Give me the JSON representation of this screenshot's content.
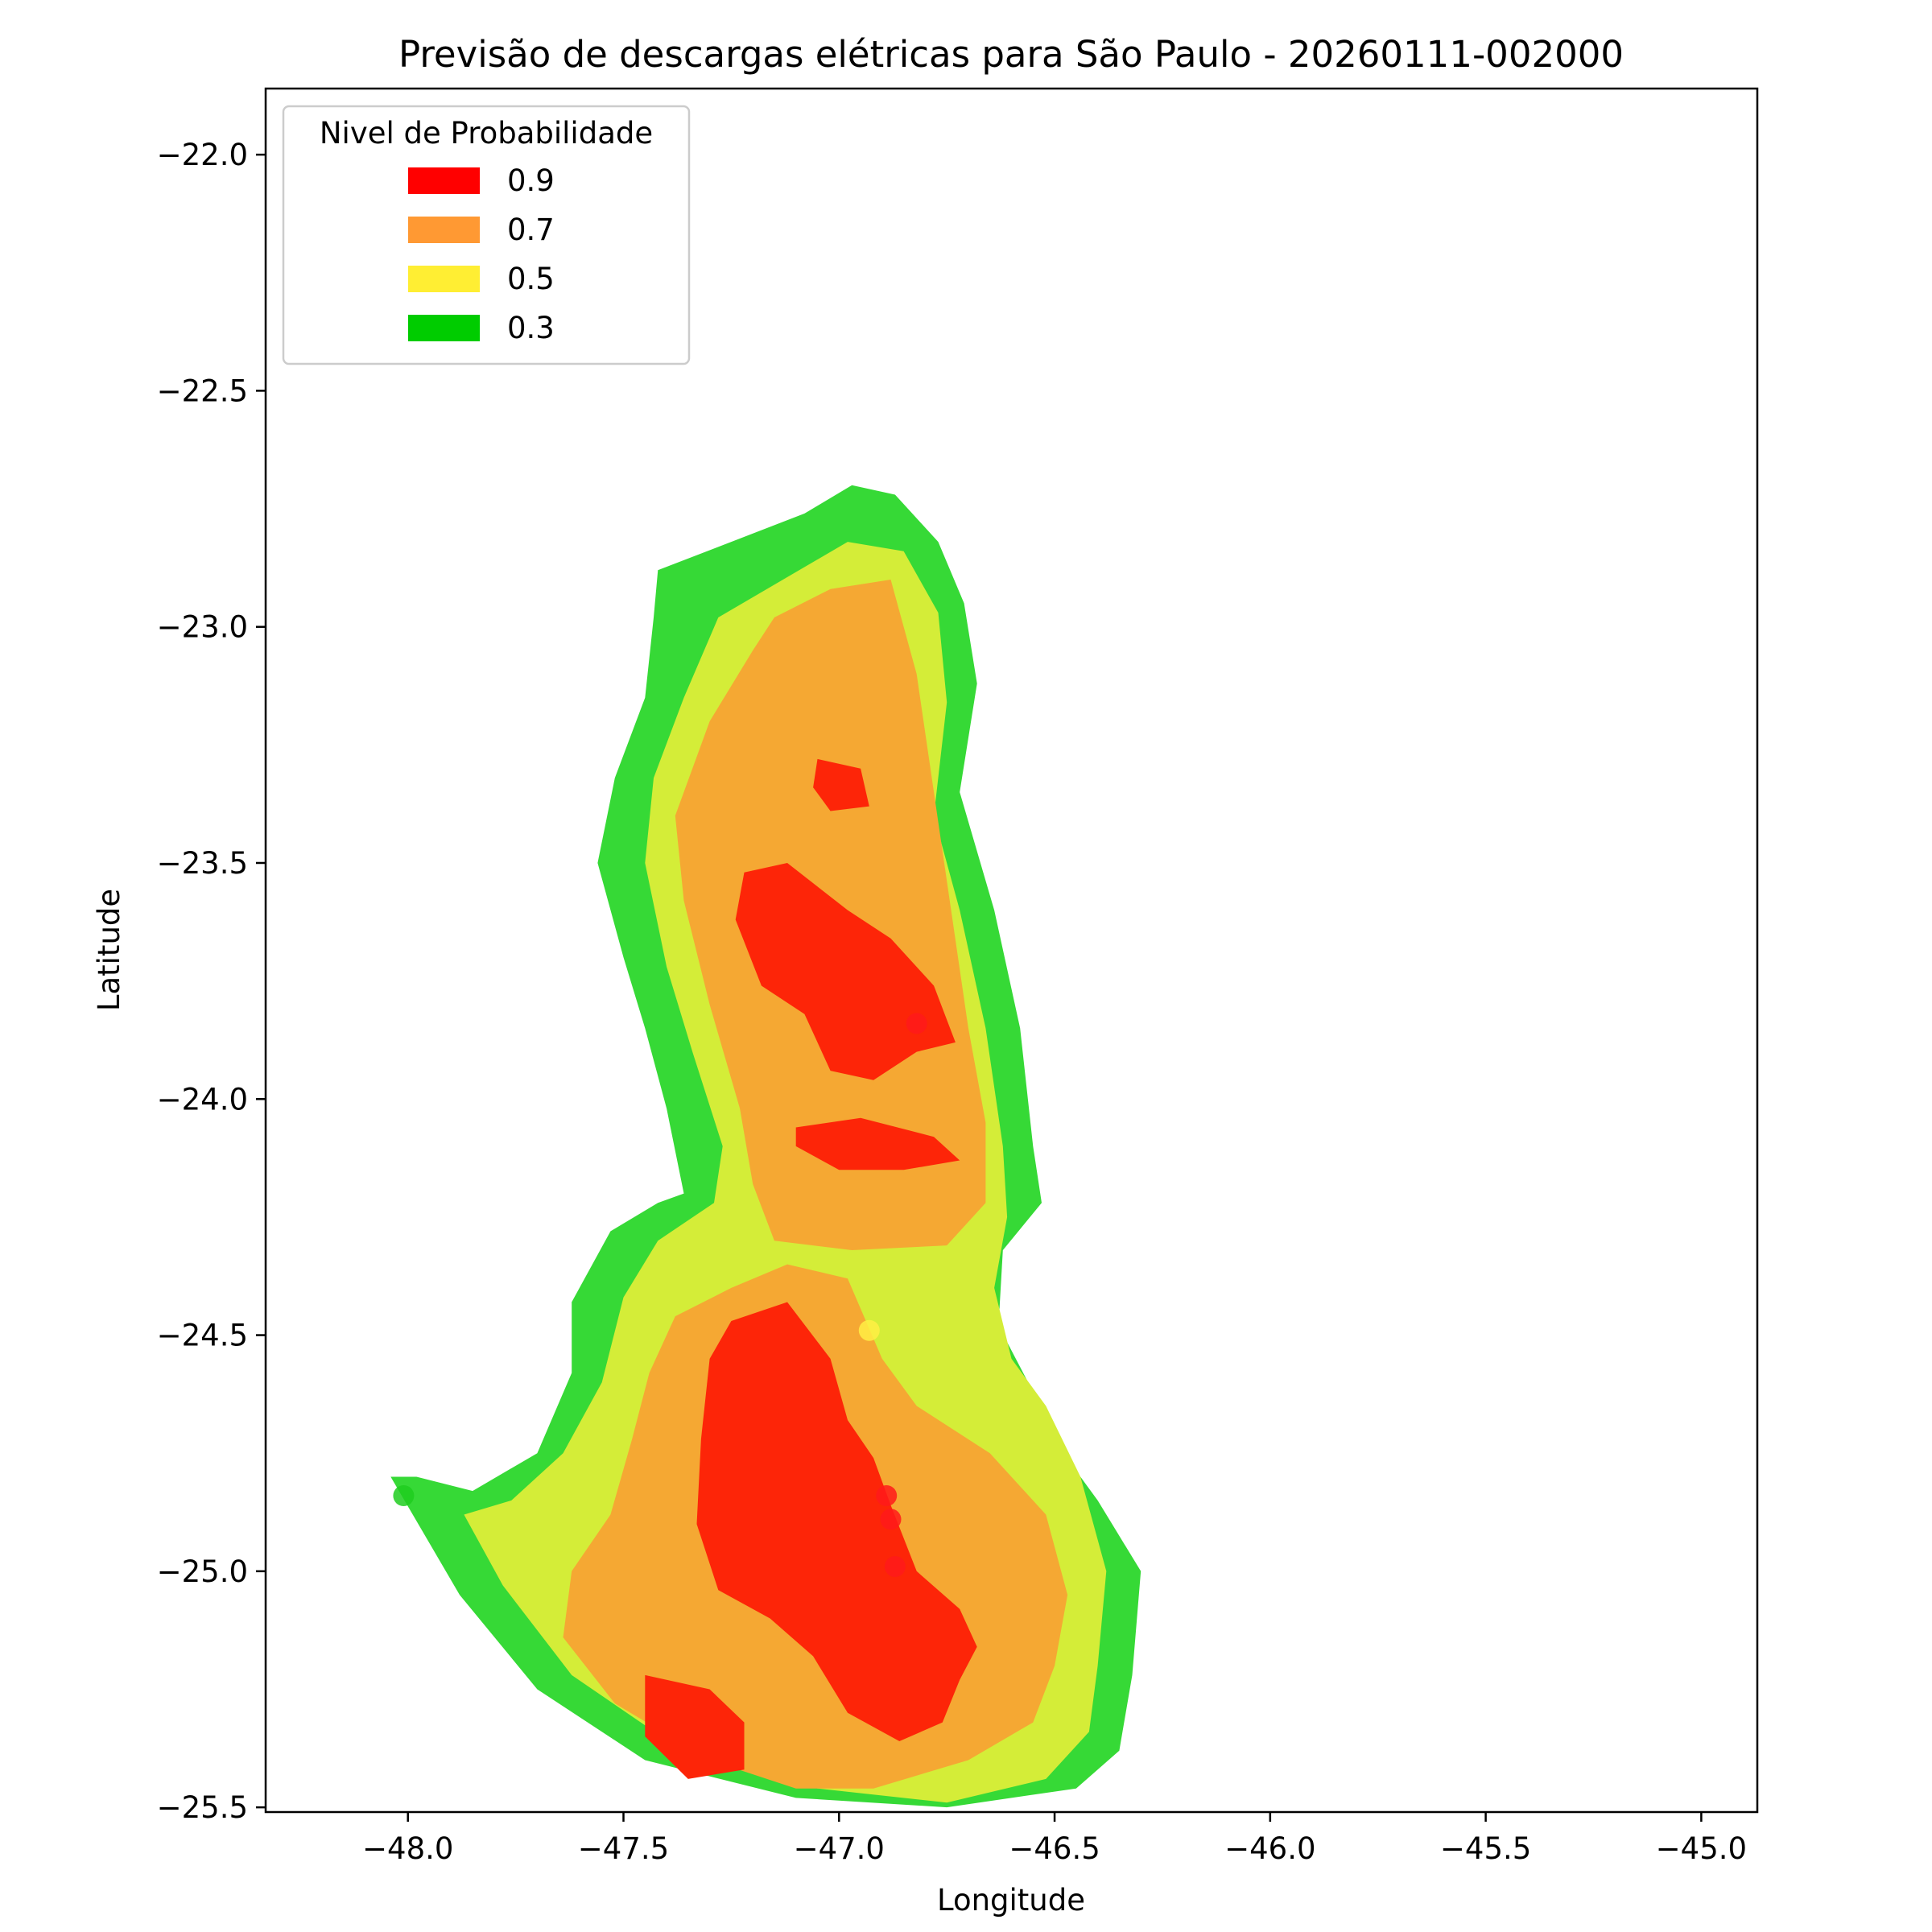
{
  "chart_data": {
    "type": "map",
    "title": "Previsão de descargas elétricas para São Paulo - 20260111-002000",
    "xlabel": "Longitude",
    "ylabel": "Latitude",
    "xlim": [
      -48.33,
      -44.87
    ],
    "ylim": [
      -25.51,
      -21.86
    ],
    "xticks": [
      -48.0,
      -47.5,
      -47.0,
      -46.5,
      -46.0,
      -45.5,
      -45.0
    ],
    "xtick_labels": [
      "−48.0",
      "−47.5",
      "−47.0",
      "−46.5",
      "−46.0",
      "−45.5",
      "−45.0"
    ],
    "yticks": [
      -22.0,
      -22.5,
      -23.0,
      -23.5,
      -24.0,
      -24.5,
      -25.0,
      -25.5
    ],
    "ytick_labels": [
      "−22.0",
      "−22.5",
      "−23.0",
      "−23.5",
      "−24.0",
      "−24.5",
      "−25.0",
      "−25.5"
    ],
    "grid": false,
    "legend": {
      "title": "Nivel de Probabilidade",
      "placement": "upper-left",
      "entries": [
        {
          "label": "0.9",
          "color": "#ff0000"
        },
        {
          "label": "0.7",
          "color": "#ff9933"
        },
        {
          "label": "0.5",
          "color": "#ffee33"
        },
        {
          "label": "0.3",
          "color": "#00cc00"
        }
      ]
    },
    "levels": [
      {
        "level": "0.3",
        "color": "#36d936",
        "polygons": [
          [
            [
              -47.42,
              -22.88
            ],
            [
              -47.25,
              -22.82
            ],
            [
              -47.08,
              -22.76
            ],
            [
              -46.97,
              -22.7
            ],
            [
              -46.87,
              -22.72
            ],
            [
              -46.77,
              -22.82
            ],
            [
              -46.71,
              -22.95
            ],
            [
              -46.68,
              -23.12
            ],
            [
              -46.72,
              -23.35
            ],
            [
              -46.64,
              -23.6
            ],
            [
              -46.58,
              -23.85
            ],
            [
              -46.55,
              -24.1
            ],
            [
              -46.53,
              -24.22
            ],
            [
              -46.62,
              -24.32
            ],
            [
              -46.63,
              -24.48
            ],
            [
              -46.55,
              -24.62
            ],
            [
              -46.48,
              -24.75
            ],
            [
              -46.4,
              -24.85
            ],
            [
              -46.3,
              -25.0
            ],
            [
              -46.32,
              -25.22
            ],
            [
              -46.35,
              -25.38
            ],
            [
              -46.45,
              -25.46
            ],
            [
              -46.75,
              -25.5
            ],
            [
              -47.1,
              -25.48
            ],
            [
              -47.45,
              -25.4
            ],
            [
              -47.7,
              -25.25
            ],
            [
              -47.88,
              -25.05
            ],
            [
              -48.04,
              -24.8
            ],
            [
              -47.98,
              -24.8
            ],
            [
              -47.85,
              -24.83
            ],
            [
              -47.7,
              -24.75
            ],
            [
              -47.62,
              -24.58
            ],
            [
              -47.62,
              -24.43
            ],
            [
              -47.53,
              -24.28
            ],
            [
              -47.42,
              -24.22
            ],
            [
              -47.36,
              -24.2
            ],
            [
              -47.4,
              -24.02
            ],
            [
              -47.45,
              -23.85
            ],
            [
              -47.5,
              -23.7
            ],
            [
              -47.56,
              -23.5
            ],
            [
              -47.52,
              -23.32
            ],
            [
              -47.45,
              -23.15
            ],
            [
              -47.43,
              -22.98
            ]
          ]
        ]
      },
      {
        "level": "0.5",
        "color": "#d4ed38",
        "polygons": [
          [
            [
              -47.28,
              -22.98
            ],
            [
              -47.13,
              -22.9
            ],
            [
              -46.98,
              -22.82
            ],
            [
              -46.85,
              -22.84
            ],
            [
              -46.77,
              -22.97
            ],
            [
              -46.75,
              -23.16
            ],
            [
              -46.78,
              -23.4
            ],
            [
              -46.72,
              -23.6
            ],
            [
              -46.66,
              -23.85
            ],
            [
              -46.62,
              -24.1
            ],
            [
              -46.61,
              -24.25
            ],
            [
              -46.64,
              -24.4
            ],
            [
              -46.6,
              -24.55
            ],
            [
              -46.52,
              -24.65
            ],
            [
              -46.44,
              -24.8
            ],
            [
              -46.38,
              -25.0
            ],
            [
              -46.4,
              -25.2
            ],
            [
              -46.42,
              -25.34
            ],
            [
              -46.52,
              -25.44
            ],
            [
              -46.75,
              -25.49
            ],
            [
              -47.05,
              -25.46
            ],
            [
              -47.38,
              -25.37
            ],
            [
              -47.62,
              -25.22
            ],
            [
              -47.78,
              -25.03
            ],
            [
              -47.87,
              -24.88
            ],
            [
              -47.76,
              -24.85
            ],
            [
              -47.64,
              -24.75
            ],
            [
              -47.55,
              -24.6
            ],
            [
              -47.5,
              -24.42
            ],
            [
              -47.42,
              -24.3
            ],
            [
              -47.29,
              -24.22
            ],
            [
              -47.27,
              -24.1
            ],
            [
              -47.34,
              -23.9
            ],
            [
              -47.4,
              -23.72
            ],
            [
              -47.45,
              -23.5
            ],
            [
              -47.43,
              -23.32
            ],
            [
              -47.36,
              -23.15
            ]
          ]
        ]
      },
      {
        "level": "0.7",
        "color": "#f5a833",
        "polygons": [
          [
            [
              -47.15,
              -22.98
            ],
            [
              -47.02,
              -22.92
            ],
            [
              -46.88,
              -22.9
            ],
            [
              -46.82,
              -23.1
            ],
            [
              -46.78,
              -23.35
            ],
            [
              -46.74,
              -23.6
            ],
            [
              -46.7,
              -23.85
            ],
            [
              -46.66,
              -24.05
            ],
            [
              -46.66,
              -24.22
            ],
            [
              -46.75,
              -24.31
            ],
            [
              -46.97,
              -24.32
            ],
            [
              -47.15,
              -24.3
            ],
            [
              -47.2,
              -24.18
            ],
            [
              -47.23,
              -24.02
            ],
            [
              -47.3,
              -23.8
            ],
            [
              -47.36,
              -23.58
            ],
            [
              -47.38,
              -23.4
            ],
            [
              -47.3,
              -23.2
            ],
            [
              -47.2,
              -23.05
            ]
          ],
          [
            [
              -47.12,
              -24.35
            ],
            [
              -46.98,
              -24.38
            ],
            [
              -46.9,
              -24.55
            ],
            [
              -46.82,
              -24.65
            ],
            [
              -46.65,
              -24.75
            ],
            [
              -46.52,
              -24.88
            ],
            [
              -46.47,
              -25.05
            ],
            [
              -46.5,
              -25.2
            ],
            [
              -46.55,
              -25.32
            ],
            [
              -46.7,
              -25.4
            ],
            [
              -46.92,
              -25.46
            ],
            [
              -47.1,
              -25.46
            ],
            [
              -47.3,
              -25.4
            ],
            [
              -47.52,
              -25.28
            ],
            [
              -47.64,
              -25.14
            ],
            [
              -47.62,
              -25.0
            ],
            [
              -47.53,
              -24.88
            ],
            [
              -47.48,
              -24.72
            ],
            [
              -47.44,
              -24.58
            ],
            [
              -47.38,
              -24.46
            ],
            [
              -47.25,
              -24.4
            ]
          ]
        ]
      },
      {
        "level": "0.9",
        "color": "#fd2508",
        "polygons": [
          [
            [
              -47.22,
              -23.52
            ],
            [
              -47.12,
              -23.5
            ],
            [
              -46.98,
              -23.6
            ],
            [
              -46.88,
              -23.66
            ],
            [
              -46.78,
              -23.76
            ],
            [
              -46.73,
              -23.88
            ],
            [
              -46.82,
              -23.9
            ],
            [
              -46.92,
              -23.96
            ],
            [
              -47.02,
              -23.94
            ],
            [
              -47.08,
              -23.82
            ],
            [
              -47.18,
              -23.76
            ],
            [
              -47.24,
              -23.62
            ]
          ],
          [
            [
              -47.05,
              -23.28
            ],
            [
              -46.95,
              -23.3
            ],
            [
              -46.93,
              -23.38
            ],
            [
              -47.02,
              -23.39
            ],
            [
              -47.06,
              -23.34
            ]
          ],
          [
            [
              -47.1,
              -24.06
            ],
            [
              -46.95,
              -24.04
            ],
            [
              -46.78,
              -24.08
            ],
            [
              -46.72,
              -24.13
            ],
            [
              -46.85,
              -24.15
            ],
            [
              -47.0,
              -24.15
            ],
            [
              -47.1,
              -24.1
            ]
          ],
          [
            [
              -47.25,
              -24.47
            ],
            [
              -47.12,
              -24.43
            ],
            [
              -47.02,
              -24.55
            ],
            [
              -46.98,
              -24.68
            ],
            [
              -46.92,
              -24.76
            ],
            [
              -46.88,
              -24.86
            ],
            [
              -46.82,
              -25.0
            ],
            [
              -46.72,
              -25.08
            ],
            [
              -46.68,
              -25.16
            ],
            [
              -46.72,
              -25.23
            ],
            [
              -46.76,
              -25.32
            ],
            [
              -46.86,
              -25.36
            ],
            [
              -46.98,
              -25.3
            ],
            [
              -47.06,
              -25.18
            ],
            [
              -47.16,
              -25.1
            ],
            [
              -47.28,
              -25.04
            ],
            [
              -47.33,
              -24.9
            ],
            [
              -47.32,
              -24.72
            ],
            [
              -47.3,
              -24.55
            ]
          ],
          [
            [
              -47.45,
              -25.22
            ],
            [
              -47.3,
              -25.25
            ],
            [
              -47.22,
              -25.32
            ],
            [
              -47.22,
              -25.42
            ],
            [
              -47.35,
              -25.44
            ],
            [
              -47.45,
              -25.35
            ]
          ]
        ]
      }
    ],
    "points": [
      {
        "lon": -46.82,
        "lat": -23.84,
        "color": "#ff1a1a"
      },
      {
        "lon": -46.93,
        "lat": -24.49,
        "color": "#ffee44"
      },
      {
        "lon": -46.89,
        "lat": -24.84,
        "color": "#ff1a1a"
      },
      {
        "lon": -46.88,
        "lat": -24.89,
        "color": "#ff1a1a"
      },
      {
        "lon": -46.87,
        "lat": -24.99,
        "color": "#ff1a1a"
      },
      {
        "lon": -48.01,
        "lat": -24.84,
        "color": "#1fcc1f"
      }
    ]
  }
}
